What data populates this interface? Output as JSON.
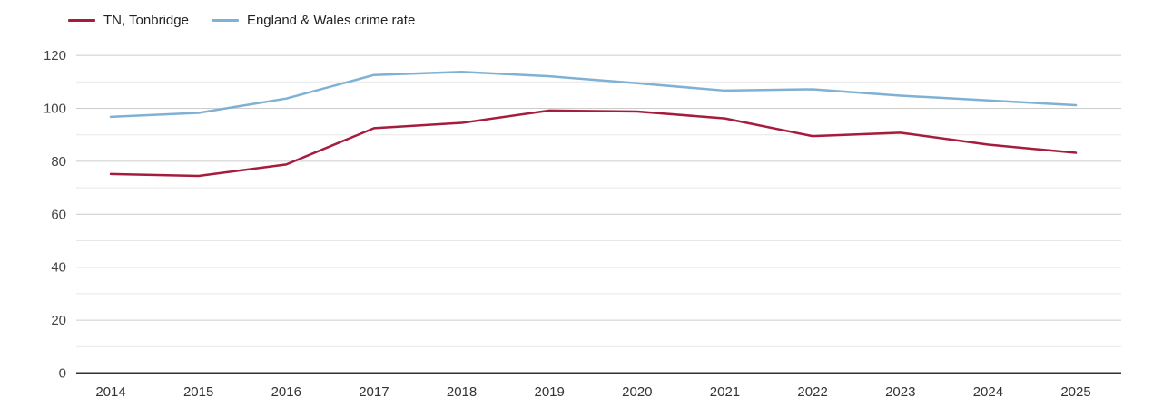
{
  "chart_data": {
    "type": "line",
    "title": "",
    "xlabel": "",
    "ylabel": "",
    "categories": [
      "2014",
      "2015",
      "2016",
      "2017",
      "2018",
      "2019",
      "2020",
      "2021",
      "2022",
      "2023",
      "2024",
      "2025"
    ],
    "series": [
      {
        "name": "TN, Tonbridge",
        "color": "#a51c3c",
        "values": [
          75.2,
          74.5,
          78.8,
          92.5,
          94.5,
          99.2,
          98.8,
          96.2,
          89.5,
          90.8,
          86.3,
          83.2
        ]
      },
      {
        "name": "England & Wales crime rate",
        "color": "#7fb1d4",
        "values": [
          96.8,
          98.3,
          103.7,
          112.6,
          113.8,
          112.1,
          109.5,
          106.7,
          107.2,
          104.8,
          103.0,
          101.2
        ]
      }
    ],
    "ylim": [
      0,
      120
    ],
    "yticks": [
      0,
      20,
      40,
      60,
      80,
      100,
      120
    ],
    "minor_gridline_step": 10,
    "grid": true,
    "legend_position": "top-left"
  },
  "legend": {
    "swatch_icon": "line-swatch-icon"
  }
}
